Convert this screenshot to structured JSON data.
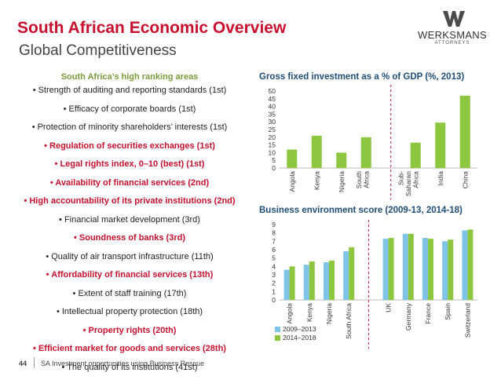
{
  "header": {
    "title": "South African Economic Overview",
    "subtitle": "Global Competitiveness"
  },
  "logo": {
    "name": "WERKSMANS",
    "tagline": "ATTORNEYS"
  },
  "ranking": {
    "heading": "South Africa’s high ranking areas",
    "items": [
      {
        "text": "Strength of auditing and reporting standards (1st)",
        "highlight": false
      },
      {
        "text": "Efficacy of corporate boards (1st)",
        "highlight": false
      },
      {
        "text": "Protection of minority shareholders’ interests (1st)",
        "highlight": false
      },
      {
        "text": "Regulation of securities exchanges (1st)",
        "highlight": true
      },
      {
        "text": "Legal rights index, 0–10 (best) (1st)",
        "highlight": true
      },
      {
        "text": "Availability of financial services (2nd)",
        "highlight": true
      },
      {
        "text": "High accountability of its private institutions (2nd)",
        "highlight": true
      },
      {
        "text": "Financial market development (3rd)",
        "highlight": false
      },
      {
        "text": "Soundness of banks (3rd)",
        "highlight": true
      },
      {
        "text": "Quality of air transport infrastructure (11th)",
        "highlight": false
      },
      {
        "text": "Affordability of financial services (13th)",
        "highlight": true
      },
      {
        "text": "Extent of staff training (17th)",
        "highlight": false
      },
      {
        "text": "Intellectual property protection (18th)",
        "highlight": false
      },
      {
        "text": "Property rights (20th)",
        "highlight": true
      },
      {
        "text": "Efficient market for goods and services (28th)",
        "highlight": true
      },
      {
        "text": "The quality of its institutions (41st)",
        "highlight": false
      }
    ]
  },
  "colors": {
    "title_red": "#c8102e",
    "bar_green": "#8dc63f",
    "bar_blue": "#7fc3e6",
    "divider_red": "#c8102e",
    "chart_title_blue": "#1f4e79"
  },
  "chart_data": [
    {
      "type": "bar",
      "title": "Gross fixed investment as a % of GDP (%, 2013)",
      "categories": [
        "Angola",
        "Kenya",
        "Nigeria",
        "South Africa",
        "Sub-Saharan Africa",
        "India",
        "China"
      ],
      "category_lines": [
        [
          "Angola"
        ],
        [
          "Kenya"
        ],
        [
          "Nigeria"
        ],
        [
          "South",
          "Africa"
        ],
        [
          "Sub-",
          "Saharan",
          "Africa"
        ],
        [
          "India"
        ],
        [
          "China"
        ]
      ],
      "values": [
        12,
        21,
        10,
        20,
        16.5,
        29.5,
        47
      ],
      "ylim": [
        0,
        50
      ],
      "yticks": [
        0,
        5,
        10,
        15,
        20,
        25,
        30,
        35,
        40,
        45,
        50
      ],
      "xlabel": "",
      "ylabel": "",
      "divider_after": 3
    },
    {
      "type": "bar",
      "title": "Business environment score (2009-13, 2014-18)",
      "categories": [
        "Angola",
        "Kenya",
        "Nigeria",
        "South Africa",
        "UK",
        "Germany",
        "France",
        "Spain",
        "Switzerland"
      ],
      "series": [
        {
          "name": "2009–2013",
          "values": [
            3.6,
            4.2,
            4.5,
            5.8,
            7.3,
            7.9,
            7.4,
            7.0,
            8.3
          ]
        },
        {
          "name": "2014–2018",
          "values": [
            4.0,
            4.6,
            4.7,
            6.3,
            7.4,
            7.9,
            7.3,
            7.2,
            8.4
          ]
        }
      ],
      "ylim": [
        0,
        9
      ],
      "yticks": [
        0,
        1,
        2,
        3,
        4,
        5,
        6,
        7,
        8,
        9
      ],
      "xlabel": "",
      "ylabel": "",
      "divider_after": 3,
      "legend_position": "bottom-left"
    }
  ],
  "footer": {
    "page": "44",
    "text": "SA Investment opportunities using Business Rescue"
  }
}
